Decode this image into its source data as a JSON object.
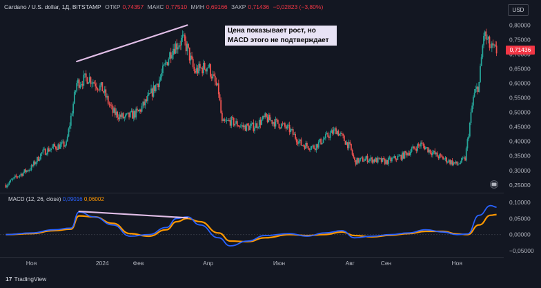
{
  "header": {
    "symbol": "Cardano / U.S. dollar, 1Д, BITSTAMP",
    "open_label": "ОТКР",
    "open_value": "0,74357",
    "high_label": "МАКС",
    "high_value": "0,77510",
    "low_label": "МИН",
    "low_value": "0,69166",
    "close_label": "ЗАКР",
    "close_value": "0,71436",
    "change": "−0,02823 (−3,80%)"
  },
  "currency_button": "USD",
  "annotation": {
    "line1": "Цена показывает рост, но",
    "line2": "MACD этого не подтверждает"
  },
  "last_price_tag": "0,71436",
  "macd_header": {
    "label": "MACD (12, 26, close)",
    "macd_value": "0,09016",
    "signal_value": "0,06002"
  },
  "branding": {
    "logo_mark": "17",
    "name": "TradingView"
  },
  "colors": {
    "background": "#131722",
    "up": "#26a69a",
    "down": "#ef5350",
    "macd": "#2962ff",
    "signal": "#ff9800",
    "trendline": "#e1bee7",
    "grid": "#1e222d"
  },
  "chart_data": [
    {
      "type": "line",
      "title": "Cardano / U.S. dollar, 1Д, BITSTAMP",
      "ylim": [
        0.24,
        0.82
      ],
      "y_ticks": [
        "0,80000",
        "0,75000",
        "0,70000",
        "0,65000",
        "0,60000",
        "0,55000",
        "0,50000",
        "0,45000",
        "0,40000",
        "0,35000",
        "0,30000",
        "0,25000"
      ],
      "y_tick_values": [
        0.8,
        0.75,
        0.7,
        0.65,
        0.6,
        0.55,
        0.5,
        0.45,
        0.4,
        0.35,
        0.3,
        0.25
      ],
      "x_ticks": [
        "Ноя",
        "2024",
        "Фев",
        "Апр",
        "Июн",
        "Авг",
        "Сен",
        "Ноя"
      ],
      "x_tick_dates": [
        "2023-11-01",
        "2024-01-01",
        "2024-02-01",
        "2024-04-01",
        "2024-06-01",
        "2024-08-01",
        "2024-09-01",
        "2024-11-01"
      ],
      "x_range": [
        "2023-10-05",
        "2024-12-10"
      ],
      "series": [
        {
          "style": "candles",
          "x": [
            "2023-10-10",
            "2023-10-20",
            "2023-11-01",
            "2023-11-10",
            "2023-11-20",
            "2023-12-01",
            "2023-12-10",
            "2023-12-20",
            "2024-01-01",
            "2024-01-10",
            "2024-01-20",
            "2024-02-01",
            "2024-02-10",
            "2024-02-20",
            "2024-03-01",
            "2024-03-10",
            "2024-03-14",
            "2024-03-20",
            "2024-04-01",
            "2024-04-10",
            "2024-04-13",
            "2024-04-20",
            "2024-05-01",
            "2024-05-10",
            "2024-05-20",
            "2024-06-01",
            "2024-06-10",
            "2024-06-20",
            "2024-07-01",
            "2024-07-10",
            "2024-07-20",
            "2024-08-01",
            "2024-08-05",
            "2024-08-15",
            "2024-09-01",
            "2024-09-15",
            "2024-10-01",
            "2024-10-15",
            "2024-11-01",
            "2024-11-08",
            "2024-11-15",
            "2024-11-20",
            "2024-11-24",
            "2024-11-30",
            "2024-12-05"
          ],
          "close": [
            0.25,
            0.28,
            0.31,
            0.36,
            0.38,
            0.39,
            0.6,
            0.62,
            0.58,
            0.5,
            0.48,
            0.5,
            0.55,
            0.62,
            0.72,
            0.75,
            0.72,
            0.64,
            0.66,
            0.57,
            0.46,
            0.47,
            0.45,
            0.45,
            0.48,
            0.46,
            0.44,
            0.39,
            0.38,
            0.41,
            0.44,
            0.38,
            0.33,
            0.34,
            0.33,
            0.35,
            0.39,
            0.35,
            0.32,
            0.34,
            0.55,
            0.6,
            0.77,
            0.72,
            0.71
          ]
        }
      ],
      "annotations": [
        {
          "type": "trendline",
          "from": [
            "2023-12-10",
            0.675
          ],
          "to": [
            "2024-03-14",
            0.8
          ]
        }
      ],
      "grid": false,
      "last_price": 0.71436
    },
    {
      "type": "line",
      "title": "MACD (12, 26, close)",
      "ylim": [
        -0.065,
        0.115
      ],
      "y_ticks": [
        "0,10000",
        "0,05000",
        "0,00000",
        "−0,05000"
      ],
      "y_tick_values": [
        0.1,
        0.05,
        0,
        -0.05
      ],
      "x": [
        "2023-10-10",
        "2023-11-01",
        "2023-11-20",
        "2023-12-05",
        "2023-12-12",
        "2023-12-25",
        "2024-01-10",
        "2024-01-25",
        "2024-02-10",
        "2024-02-25",
        "2024-03-05",
        "2024-03-14",
        "2024-03-25",
        "2024-04-10",
        "2024-04-20",
        "2024-05-05",
        "2024-05-20",
        "2024-06-10",
        "2024-06-25",
        "2024-07-10",
        "2024-07-25",
        "2024-08-05",
        "2024-08-20",
        "2024-09-05",
        "2024-09-20",
        "2024-10-05",
        "2024-10-20",
        "2024-11-01",
        "2024-11-10",
        "2024-11-20",
        "2024-11-30",
        "2024-12-05"
      ],
      "series": [
        {
          "name": "MACD",
          "values": [
            0.0,
            0.005,
            0.015,
            0.02,
            0.07,
            0.055,
            0.03,
            -0.005,
            0.0,
            0.022,
            0.05,
            0.055,
            0.03,
            -0.01,
            -0.035,
            -0.02,
            -0.003,
            0.003,
            -0.005,
            0.005,
            0.012,
            -0.01,
            -0.005,
            0.0,
            0.005,
            0.015,
            0.008,
            0.0,
            0.002,
            0.06,
            0.09,
            0.085
          ]
        },
        {
          "name": "Signal",
          "values": [
            0.0,
            0.003,
            0.012,
            0.017,
            0.058,
            0.055,
            0.035,
            0.003,
            -0.005,
            0.015,
            0.04,
            0.05,
            0.04,
            0.005,
            -0.02,
            -0.022,
            -0.01,
            0.0,
            -0.003,
            0.0,
            0.008,
            -0.003,
            -0.007,
            -0.002,
            0.003,
            0.01,
            0.01,
            0.002,
            0.0,
            0.03,
            0.06,
            0.062
          ]
        }
      ],
      "annotations": [
        {
          "type": "trendline",
          "from": [
            "2023-12-12",
            0.072
          ],
          "to": [
            "2024-03-14",
            0.052
          ]
        }
      ],
      "grid": false
    }
  ]
}
